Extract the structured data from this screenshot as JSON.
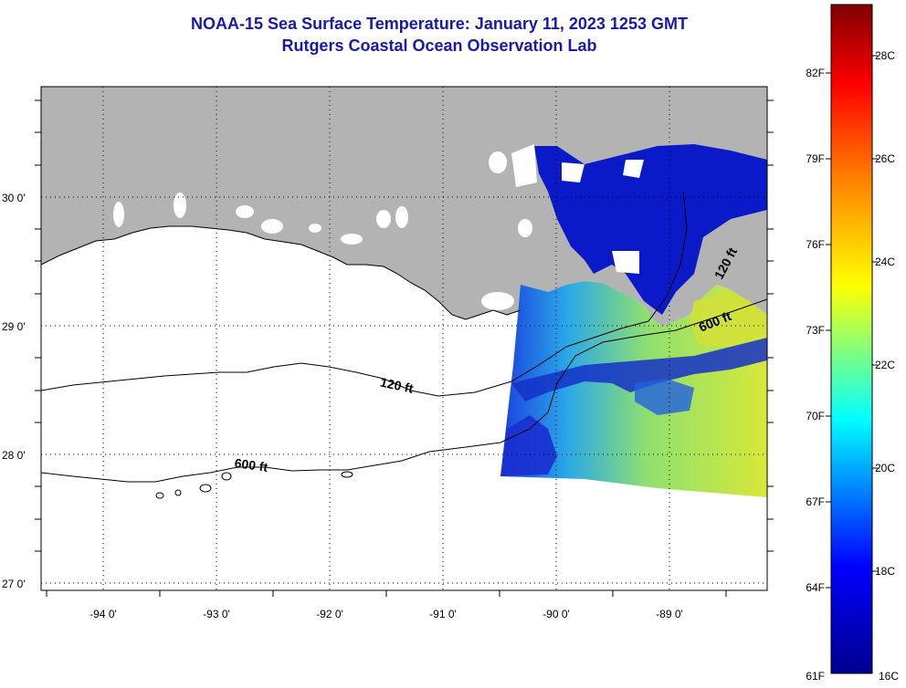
{
  "title": {
    "line1": "NOAA-15 Sea Surface Temperature:  January 11, 2023 1253 GMT",
    "line2": "Rutgers Coastal Ocean Observation Lab"
  },
  "map": {
    "lat_labels": [
      "30 0'",
      "29 0'",
      "28 0'",
      "27 0'"
    ],
    "lon_labels": [
      "-94 0'",
      "-93 0'",
      "-92 0'",
      "-91 0'",
      "-90 0'",
      "-89 0'"
    ],
    "contour_labels": [
      "120 ft",
      "600 ft",
      "120 ft",
      "600 ft"
    ],
    "colors": {
      "land": "#b3b3b3",
      "water": "#ffffff",
      "frame": "#000000"
    }
  },
  "colorbar": {
    "f_labels": [
      "82F",
      "79F",
      "76F",
      "73F",
      "70F",
      "67F",
      "64F",
      "61F"
    ],
    "c_labels": [
      "28C",
      "26C",
      "24C",
      "22C",
      "20C",
      "18C",
      "16C"
    ],
    "min_c": 16,
    "max_c": 29,
    "colors": [
      "#00008f",
      "#0000ff",
      "#00ffff",
      "#ffff00",
      "#ff8000",
      "#ff0000",
      "#800000"
    ]
  }
}
